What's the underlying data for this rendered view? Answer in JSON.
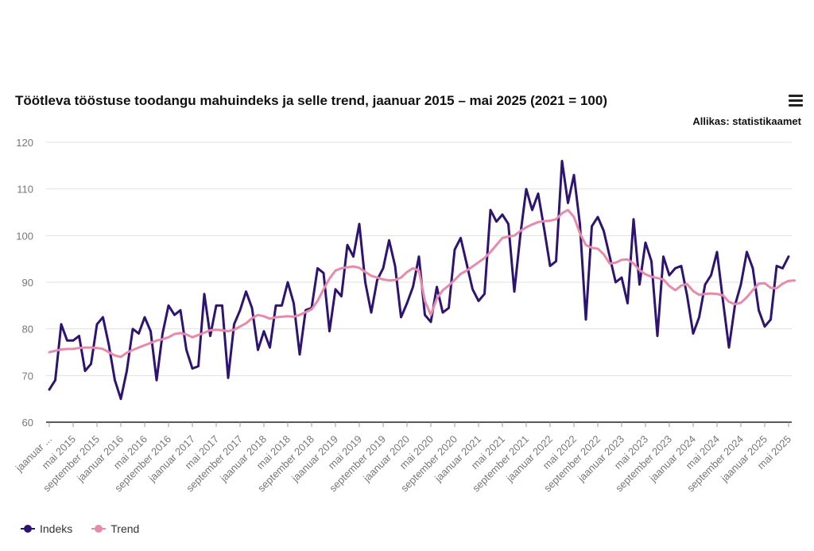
{
  "header": {
    "title": "Töötleva tööstuse toodangu mahuindeks ja selle trend, jaanuar 2015 – mai 2025 (2021 = 100)",
    "source": "Allikas: statistikaamet",
    "menu_icon": "hamburger-menu-icon"
  },
  "chart_data": {
    "type": "line",
    "title": "Töötleva tööstuse toodangu mahuindeks ja selle trend, jaanuar 2015 – mai 2025 (2021 = 100)",
    "xlabel": "",
    "ylabel": "",
    "ylim": [
      60,
      120
    ],
    "yticks": [
      60,
      70,
      80,
      90,
      100,
      110,
      120
    ],
    "grid": true,
    "legend_position": "bottom-left",
    "x_tick_labels": [
      "jaanuar ...",
      "mai 2015",
      "september 2015",
      "jaanuar 2016",
      "mai 2016",
      "september 2016",
      "jaanuar 2017",
      "mai 2017",
      "september 2017",
      "jaanuar 2018",
      "mai 2018",
      "september 2018",
      "jaanuar 2019",
      "mai 2019",
      "september 2019",
      "jaanuar 2020",
      "mai 2020",
      "september 2020",
      "jaanuar 2021",
      "mai 2021",
      "september 2021",
      "jaanuar 2022",
      "mai 2022",
      "september 2022",
      "jaanuar 2023",
      "mai 2023",
      "september 2023",
      "jaanuar 2024",
      "mai 2024",
      "september 2024",
      "jaanuar 2025",
      "mai 2025"
    ],
    "x_start": "2015-01",
    "x_end": "2025-05",
    "series": [
      {
        "name": "Indeks",
        "color": "#2e1470",
        "values": [
          67,
          69,
          81,
          77.5,
          77.5,
          78.5,
          71,
          72.5,
          81,
          82.5,
          76.5,
          69,
          65,
          71,
          80,
          79,
          82.5,
          79.5,
          69,
          79,
          85,
          83,
          84,
          75.5,
          71.5,
          72,
          87.5,
          78.5,
          85,
          85,
          69.5,
          81,
          84,
          88,
          84.5,
          75.5,
          79.5,
          76,
          85,
          85,
          90,
          85.5,
          74.5,
          84,
          84.5,
          93,
          92,
          79.5,
          88.5,
          87,
          98,
          95.5,
          102.5,
          90,
          83.5,
          90.5,
          93,
          99,
          93.5,
          82.5,
          85.5,
          89,
          95.5,
          83,
          81.5,
          89,
          83.5,
          84.5,
          97,
          99.5,
          94,
          88.5,
          86,
          87.5,
          105.5,
          103,
          104.5,
          102.5,
          88,
          100,
          110,
          105.5,
          109,
          101.5,
          93.5,
          94.5,
          116,
          107,
          113,
          102.5,
          82,
          102,
          104,
          101,
          95.5,
          90,
          91,
          85.5,
          103.5,
          89.5,
          98.5,
          94.5,
          78.5,
          95.5,
          91.5,
          93,
          93.5,
          87,
          79,
          82.5,
          89.5,
          91.5,
          96.5,
          86,
          76,
          85,
          89.5,
          96.5,
          93,
          84,
          80.5,
          82,
          93.5,
          93,
          95.5
        ]
      },
      {
        "name": "Trend",
        "color": "#e88aaa",
        "values": [
          75,
          75.3,
          75.6,
          75.7,
          75.7,
          75.9,
          76,
          76,
          75.9,
          75.7,
          75,
          74.3,
          74,
          74.9,
          75.5,
          76,
          76.5,
          77,
          77.5,
          77.8,
          78.2,
          78.9,
          79.1,
          78.8,
          78.2,
          78.7,
          79.2,
          79.7,
          79.8,
          79.7,
          79.5,
          79.8,
          80.5,
          81.2,
          82.3,
          83,
          82.7,
          82.2,
          82.5,
          82.6,
          82.7,
          82.6,
          83,
          83.6,
          84.2,
          86,
          88.5,
          90.8,
          92.5,
          93,
          93.2,
          93.4,
          93.1,
          92.2,
          91.4,
          91,
          90.6,
          90.4,
          90.5,
          91,
          92.2,
          93,
          92.5,
          86,
          83,
          86.5,
          88.3,
          89.3,
          90.5,
          91.8,
          92.5,
          93.4,
          94.3,
          95.2,
          96.5,
          98,
          99.5,
          99.8,
          100,
          101,
          101.8,
          102.4,
          102.9,
          103.1,
          103.2,
          103.5,
          104.8,
          105.5,
          104,
          100.5,
          98,
          97.4,
          97.2,
          96,
          94,
          94.2,
          94.8,
          94.9,
          94,
          92.6,
          91.7,
          91.2,
          90.9,
          90.6,
          89.2,
          88.3,
          89.3,
          89.6,
          88.1,
          87.3,
          87.5,
          87.6,
          87.5,
          87.2,
          85.8,
          85.3,
          85.6,
          86.8,
          88.3,
          89.7,
          89.8,
          88.8,
          88.7,
          89.7,
          90.3,
          90.4
        ]
      }
    ]
  },
  "legend": {
    "items": [
      {
        "label": "Indeks",
        "color": "#2e1470"
      },
      {
        "label": "Trend",
        "color": "#e88aaa"
      }
    ]
  }
}
